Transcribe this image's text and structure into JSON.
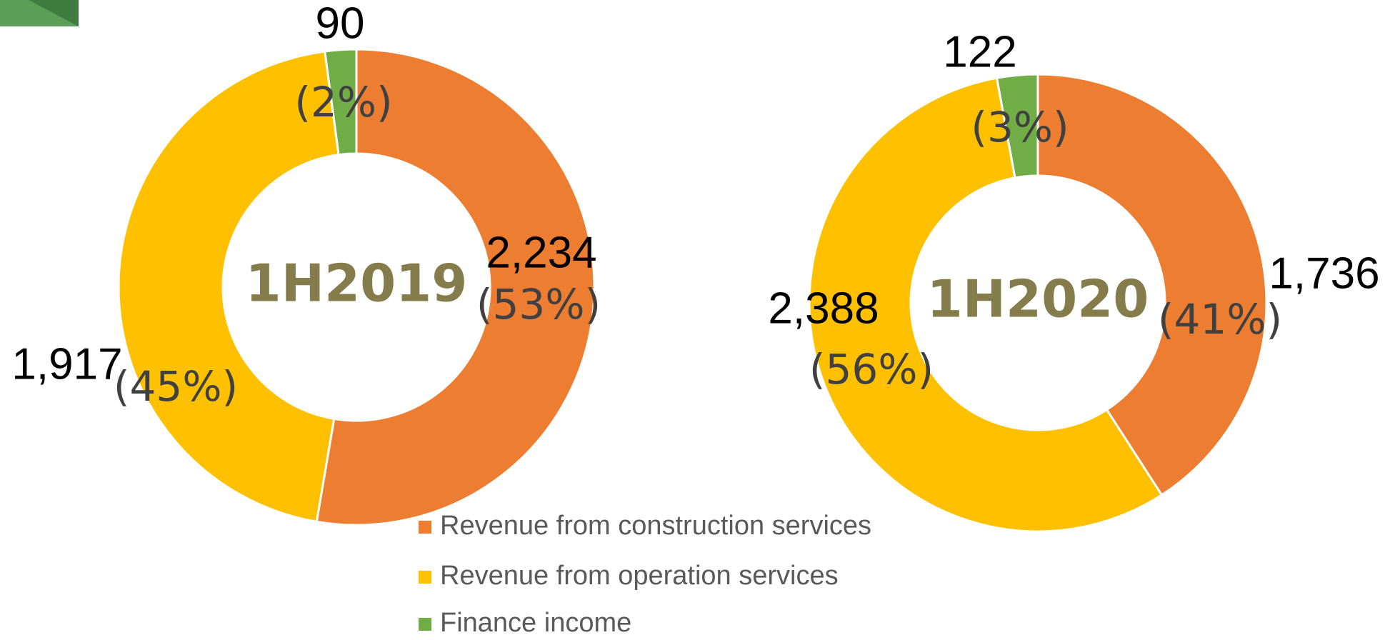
{
  "legend": {
    "categories": [
      "Revenue from construction services",
      "Revenue from operation services",
      "Finance income"
    ],
    "colors": [
      "#ed7d31",
      "#ffc000",
      "#70ad47"
    ]
  },
  "chart_data": [
    {
      "type": "pie",
      "title": "1H2019",
      "values": [
        2234,
        1917,
        90
      ],
      "value_labels": [
        "2,234",
        "1,917",
        "90"
      ],
      "percent_labels": [
        "(53%)",
        "(45%)",
        "(2%)"
      ]
    },
    {
      "type": "pie",
      "title": "1H2020",
      "values": [
        1736,
        2388,
        122
      ],
      "value_labels": [
        "1,736",
        "2,388",
        "122"
      ],
      "percent_labels": [
        "(41%)",
        "(56%)",
        "(3%)"
      ]
    }
  ]
}
